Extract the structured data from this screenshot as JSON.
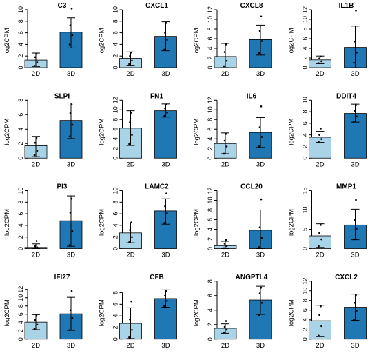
{
  "colors": {
    "bar_2d": "#a9d4e8",
    "bar_3d": "#1f77b4",
    "axis": "#000000",
    "point": "#000000"
  },
  "chart_data": [
    {
      "type": "bar",
      "title": "C3",
      "ylabel": "log2CPM",
      "categories": [
        "2D",
        "3D"
      ],
      "ylim": [
        0,
        10
      ],
      "yticks": [
        0,
        2,
        4,
        6,
        8,
        10
      ],
      "values": [
        1.3,
        6.1
      ],
      "error_low": [
        0.2,
        3.4
      ],
      "error_high": [
        2.5,
        8.6
      ],
      "points": [
        [
          0.3,
          0.9,
          1.8,
          2.4
        ],
        [
          4.0,
          5.6,
          7.3,
          10.2
        ]
      ]
    },
    {
      "type": "bar",
      "title": "CXCL1",
      "ylabel": "log2CPM",
      "categories": [
        "2D",
        "3D"
      ],
      "ylim": [
        0,
        10
      ],
      "yticks": [
        0,
        2,
        4,
        6,
        8,
        10
      ],
      "values": [
        1.6,
        5.4
      ],
      "error_low": [
        0.4,
        2.9
      ],
      "error_high": [
        2.7,
        7.9
      ],
      "points": [
        [
          0.6,
          1.2,
          2.0,
          2.6
        ],
        [
          3.1,
          4.8,
          6.0,
          7.7
        ]
      ]
    },
    {
      "type": "bar",
      "title": "CXCL8",
      "ylabel": "log2CPM",
      "categories": [
        "2D",
        "3D"
      ],
      "ylim": [
        0,
        12
      ],
      "yticks": [
        0,
        2,
        4,
        6,
        8,
        10,
        12
      ],
      "values": [
        2.3,
        5.8
      ],
      "error_low": [
        0.0,
        2.6
      ],
      "error_high": [
        5.0,
        8.8
      ],
      "points": [
        [
          0.3,
          1.4,
          3.2,
          4.8
        ],
        [
          3.0,
          5.5,
          7.6,
          10.6
        ]
      ]
    },
    {
      "type": "bar",
      "title": "IL1B",
      "ylabel": "log2CPM",
      "categories": [
        "2D",
        "3D"
      ],
      "ylim": [
        0,
        12
      ],
      "yticks": [
        0,
        2,
        4,
        6,
        8,
        10,
        12
      ],
      "values": [
        1.6,
        4.2
      ],
      "error_low": [
        0.8,
        0.0
      ],
      "error_high": [
        2.4,
        8.6
      ],
      "points": [
        [
          0.9,
          1.3,
          1.9,
          2.3
        ],
        [
          1.0,
          3.1,
          5.4,
          11.8
        ]
      ]
    },
    {
      "type": "bar",
      "title": "SLPI",
      "ylabel": "log2CPM",
      "categories": [
        "2D",
        "3D"
      ],
      "ylim": [
        0,
        8
      ],
      "yticks": [
        0,
        2,
        4,
        6,
        8
      ],
      "values": [
        1.7,
        5.2
      ],
      "error_low": [
        0.2,
        2.7
      ],
      "error_high": [
        3.0,
        7.6
      ],
      "points": [
        [
          0.4,
          1.0,
          2.1,
          2.8
        ],
        [
          3.0,
          4.6,
          6.2,
          7.4
        ]
      ]
    },
    {
      "type": "bar",
      "title": "FN1",
      "ylabel": "log2CPM",
      "categories": [
        "2D",
        "3D"
      ],
      "ylim": [
        0,
        12
      ],
      "yticks": [
        0,
        2,
        4,
        6,
        8,
        10,
        12
      ],
      "values": [
        6.2,
        9.8
      ],
      "error_low": [
        2.6,
        8.5
      ],
      "error_high": [
        9.8,
        11.2
      ],
      "points": [
        [
          2.9,
          4.8,
          7.4,
          9.4
        ],
        [
          8.7,
          9.4,
          10.3,
          11.1
        ]
      ]
    },
    {
      "type": "bar",
      "title": "IL6",
      "ylabel": "log2CPM",
      "categories": [
        "2D",
        "3D"
      ],
      "ylim": [
        0,
        12
      ],
      "yticks": [
        0,
        2,
        4,
        6,
        8,
        10,
        12
      ],
      "values": [
        3.0,
        5.3
      ],
      "error_low": [
        0.9,
        2.2
      ],
      "error_high": [
        5.2,
        8.4
      ],
      "points": [
        [
          0.9,
          2.4,
          3.6,
          5.0
        ],
        [
          2.4,
          4.4,
          6.4,
          10.7
        ]
      ]
    },
    {
      "type": "bar",
      "title": "DDIT4",
      "ylabel": "log2CPM",
      "categories": [
        "2D",
        "3D"
      ],
      "ylim": [
        0,
        10
      ],
      "yticks": [
        0,
        2,
        4,
        6,
        8,
        10
      ],
      "values": [
        3.6,
        7.7
      ],
      "error_low": [
        2.7,
        6.2
      ],
      "error_high": [
        4.6,
        9.3
      ],
      "points": [
        [
          2.8,
          3.3,
          4.0,
          5.1
        ],
        [
          6.3,
          7.2,
          8.1,
          9.1
        ]
      ]
    },
    {
      "type": "bar",
      "title": "PI3",
      "ylabel": "log2CPM",
      "categories": [
        "2D",
        "3D"
      ],
      "ylim": [
        0,
        10
      ],
      "yticks": [
        0,
        2,
        4,
        6,
        8,
        10
      ],
      "values": [
        0.2,
        4.8
      ],
      "error_low": [
        0.0,
        0.4
      ],
      "error_high": [
        0.8,
        9.1
      ],
      "points": [
        [
          0.1,
          0.2,
          0.4,
          1.3
        ],
        [
          0.6,
          3.0,
          6.2,
          8.6
        ]
      ]
    },
    {
      "type": "bar",
      "title": "LAMC2",
      "ylabel": "log2CPM",
      "categories": [
        "2D",
        "3D"
      ],
      "ylim": [
        0,
        10
      ],
      "yticks": [
        0,
        2,
        4,
        6,
        8,
        10
      ],
      "values": [
        2.7,
        6.5
      ],
      "error_low": [
        1.0,
        4.2
      ],
      "error_high": [
        4.4,
        8.6
      ],
      "points": [
        [
          1.1,
          2.0,
          3.2,
          4.5
        ],
        [
          4.4,
          6.1,
          7.3,
          9.5
        ]
      ]
    },
    {
      "type": "bar",
      "title": "CCL20",
      "ylabel": "log2CPM",
      "categories": [
        "2D",
        "3D"
      ],
      "ylim": [
        0,
        12
      ],
      "yticks": [
        0,
        2,
        4,
        6,
        8,
        10,
        12
      ],
      "values": [
        0.6,
        3.8
      ],
      "error_low": [
        0.0,
        0.0
      ],
      "error_high": [
        1.5,
        8.0
      ],
      "points": [
        [
          0.1,
          0.5,
          1.0,
          1.8
        ],
        [
          0.3,
          2.2,
          4.4,
          10.2
        ]
      ]
    },
    {
      "type": "bar",
      "title": "MMP1",
      "ylabel": "log2CPM",
      "categories": [
        "2D",
        "3D"
      ],
      "ylim": [
        0,
        15
      ],
      "yticks": [
        0,
        5,
        10,
        15
      ],
      "values": [
        3.3,
        6.1
      ],
      "error_low": [
        0.3,
        2.3
      ],
      "error_high": [
        6.4,
        10.2
      ],
      "points": [
        [
          0.6,
          2.4,
          4.0,
          6.1
        ],
        [
          2.4,
          5.2,
          7.4,
          12.6
        ]
      ]
    },
    {
      "type": "bar",
      "title": "IFI27",
      "ylabel": "log2CPM",
      "categories": [
        "2D",
        "3D"
      ],
      "ylim": [
        0,
        14
      ],
      "yticks": [
        0,
        2,
        4,
        6,
        8,
        10,
        12
      ],
      "values": [
        4.1,
        6.1
      ],
      "error_low": [
        2.3,
        2.1
      ],
      "error_high": [
        5.9,
        10.1
      ],
      "points": [
        [
          2.5,
          3.5,
          4.6,
          5.6
        ],
        [
          2.2,
          5.1,
          7.0,
          11.6
        ]
      ]
    },
    {
      "type": "bar",
      "title": "CFB",
      "ylabel": "log2CPM",
      "categories": [
        "2D",
        "3D"
      ],
      "ylim": [
        0,
        10
      ],
      "yticks": [
        0,
        2,
        4,
        6,
        8
      ],
      "values": [
        2.7,
        7.0
      ],
      "error_low": [
        0.1,
        5.5
      ],
      "error_high": [
        5.4,
        8.5
      ],
      "points": [
        [
          0.3,
          1.6,
          3.4,
          6.5
        ],
        [
          5.7,
          6.6,
          7.5,
          8.3
        ]
      ]
    },
    {
      "type": "bar",
      "title": "ANGPTL4",
      "ylabel": "log2CPM",
      "categories": [
        "2D",
        "3D"
      ],
      "ylim": [
        0,
        8
      ],
      "yticks": [
        0,
        2,
        4,
        6,
        8
      ],
      "values": [
        1.5,
        5.4
      ],
      "error_low": [
        0.8,
        3.4
      ],
      "error_high": [
        2.1,
        7.3
      ],
      "points": [
        [
          0.9,
          1.3,
          1.7,
          2.5
        ],
        [
          3.3,
          5.0,
          6.3,
          7.1
        ]
      ]
    },
    {
      "type": "bar",
      "title": "CXCL2",
      "ylabel": "log2CPM",
      "categories": [
        "2D",
        "3D"
      ],
      "ylim": [
        0,
        12
      ],
      "yticks": [
        0,
        2,
        4,
        6,
        8,
        10,
        12
      ],
      "values": [
        3.8,
        6.6
      ],
      "error_low": [
        0.5,
        3.9
      ],
      "error_high": [
        7.0,
        9.3
      ],
      "points": [
        [
          0.7,
          2.7,
          5.0,
          6.8
        ],
        [
          4.0,
          5.9,
          7.5,
          9.1
        ]
      ]
    }
  ]
}
